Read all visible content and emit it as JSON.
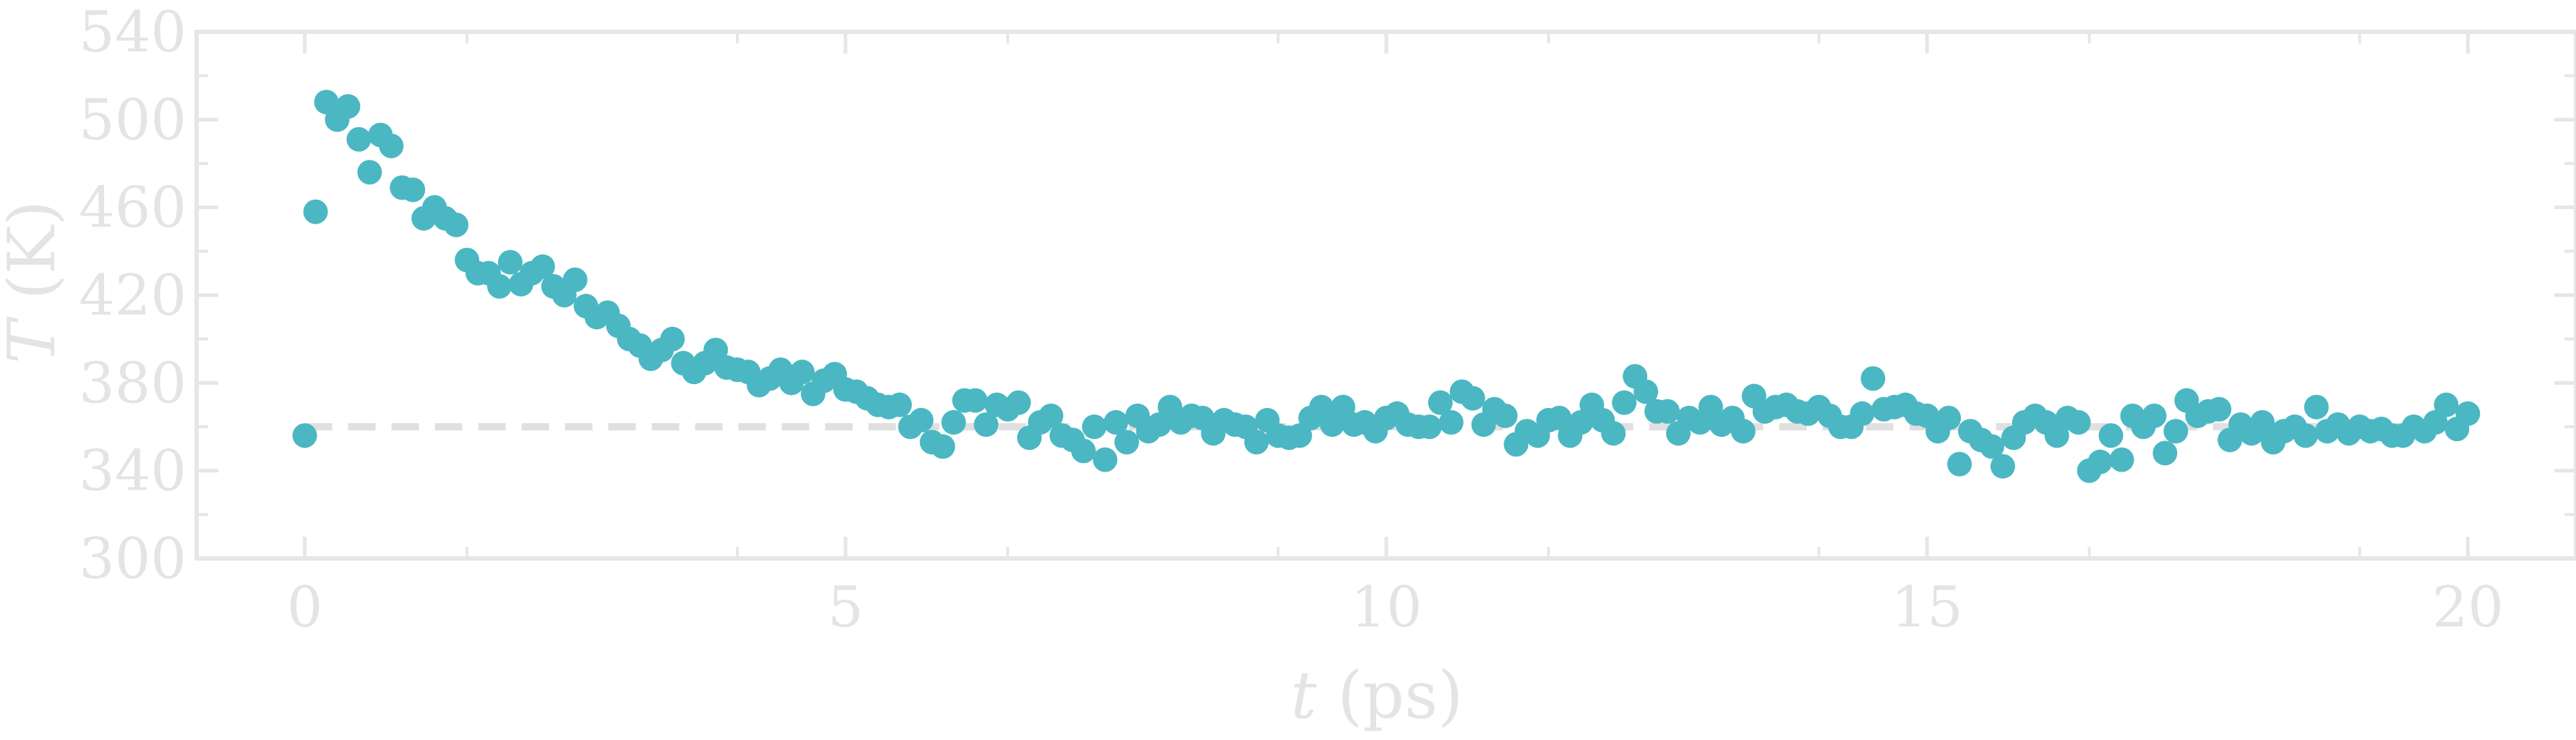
{
  "chart_data": {
    "type": "scatter",
    "title": "",
    "xlabel_var": "t",
    "xlabel_unit": "(ps)",
    "ylabel_var": "T",
    "ylabel_unit": "(K)",
    "xlim": [
      -1.0,
      21.0
    ],
    "ylim": [
      300,
      540
    ],
    "xticks": [
      0,
      5,
      10,
      15,
      20
    ],
    "xtick_labels": [
      "0",
      "5",
      "10",
      "15",
      "20"
    ],
    "yticks": [
      300,
      340,
      380,
      420,
      460,
      500,
      540
    ],
    "ytick_labels": [
      "300",
      "340",
      "380",
      "420",
      "460",
      "500",
      "540"
    ],
    "grid": false,
    "reference_line": {
      "y": 360,
      "x_start": 0,
      "x_end": 20,
      "style": "dashed",
      "color": "#e0e0e0"
    },
    "series": [
      {
        "color": "#4bb7c3",
        "x": [
          0.0,
          0.1,
          0.2,
          0.3,
          0.4,
          0.5,
          0.6,
          0.7,
          0.8,
          0.9,
          1.0,
          1.1,
          1.2,
          1.3,
          1.4,
          1.5,
          1.6,
          1.7,
          1.8,
          1.9,
          2.0,
          2.1,
          2.2,
          2.3,
          2.4,
          2.5,
          2.6,
          2.7,
          2.8,
          2.9,
          3.0,
          3.1,
          3.2,
          3.3,
          3.4,
          3.5,
          3.6,
          3.7,
          3.8,
          3.9,
          4.0,
          4.1,
          4.2,
          4.3,
          4.4,
          4.5,
          4.6,
          4.7,
          4.8,
          4.9,
          5.0,
          5.1,
          5.2,
          5.3,
          5.4,
          5.5,
          5.6,
          5.7,
          5.8,
          5.9,
          6.0,
          6.1,
          6.2,
          6.3,
          6.4,
          6.5,
          6.6,
          6.7,
          6.8,
          6.9,
          7.0,
          7.1,
          7.2,
          7.3,
          7.4,
          7.5,
          7.6,
          7.7,
          7.8,
          7.9,
          8.0,
          8.1,
          8.2,
          8.3,
          8.4,
          8.5,
          8.6,
          8.7,
          8.8,
          8.9,
          9.0,
          9.1,
          9.2,
          9.3,
          9.4,
          9.5,
          9.6,
          9.7,
          9.8,
          9.9,
          10.0,
          10.1,
          10.2,
          10.3,
          10.4,
          10.5,
          10.6,
          10.7,
          10.8,
          10.9,
          11.0,
          11.1,
          11.2,
          11.3,
          11.4,
          11.5,
          11.6,
          11.7,
          11.8,
          11.9,
          12.0,
          12.1,
          12.2,
          12.3,
          12.4,
          12.5,
          12.6,
          12.7,
          12.8,
          12.9,
          13.0,
          13.1,
          13.2,
          13.3,
          13.4,
          13.5,
          13.6,
          13.7,
          13.8,
          13.9,
          14.0,
          14.1,
          14.2,
          14.3,
          14.4,
          14.5,
          14.6,
          14.7,
          14.8,
          14.9,
          15.0,
          15.1,
          15.2,
          15.3,
          15.4,
          15.5,
          15.6,
          15.7,
          15.8,
          15.9,
          16.0,
          16.1,
          16.2,
          16.3,
          16.4,
          16.5,
          16.6,
          16.7,
          16.8,
          16.9,
          17.0,
          17.1,
          17.2,
          17.3,
          17.4,
          17.5,
          17.6,
          17.7,
          17.8,
          17.9,
          18.0,
          18.1,
          18.2,
          18.3,
          18.4,
          18.5,
          18.6,
          18.7,
          18.8,
          18.9,
          19.0,
          19.1,
          19.2,
          19.3,
          19.4,
          19.5,
          19.6,
          19.7,
          19.8,
          19.9,
          20.0
        ],
        "y": [
          356,
          458,
          508,
          500,
          506,
          491,
          476,
          493,
          488,
          469,
          468,
          455,
          460,
          455,
          452,
          436,
          430,
          430,
          424,
          435,
          425,
          430,
          433,
          424,
          420,
          427,
          415,
          410,
          412,
          406,
          400,
          397,
          391,
          395,
          400,
          389,
          385,
          389,
          395,
          387,
          386,
          385,
          379,
          382,
          386,
          380,
          385,
          375,
          381,
          384,
          377,
          376,
          373,
          370,
          369,
          370,
          360,
          363,
          353,
          351,
          362,
          372,
          372,
          361,
          370,
          368,
          371,
          355,
          362,
          365,
          356,
          354,
          349,
          360,
          345,
          362,
          353,
          365,
          358,
          361,
          369,
          362,
          365,
          364,
          357,
          363,
          361,
          360,
          353,
          363,
          356,
          355,
          356,
          364,
          369,
          361,
          369,
          361,
          362,
          358,
          364,
          366,
          361,
          360,
          360,
          371,
          362,
          376,
          373,
          361,
          368,
          365,
          352,
          358,
          356,
          363,
          364,
          356,
          362,
          370,
          363,
          357,
          371,
          383,
          376,
          367,
          367,
          357,
          364,
          362,
          369,
          361,
          364,
          358,
          374,
          367,
          369,
          370,
          367,
          366,
          369,
          365,
          360,
          360,
          366,
          382,
          368,
          369,
          370,
          366,
          365,
          358,
          364,
          343,
          358,
          354,
          351,
          342,
          355,
          362,
          365,
          362,
          356,
          364,
          362,
          340,
          344,
          356,
          345,
          365,
          360,
          365,
          348,
          358,
          372,
          365,
          367,
          368,
          354,
          361,
          357,
          362,
          353,
          358,
          360,
          356,
          369,
          358,
          361,
          357,
          360,
          358,
          359,
          356,
          356,
          360,
          358,
          362,
          370,
          359,
          366
        ]
      }
    ]
  }
}
